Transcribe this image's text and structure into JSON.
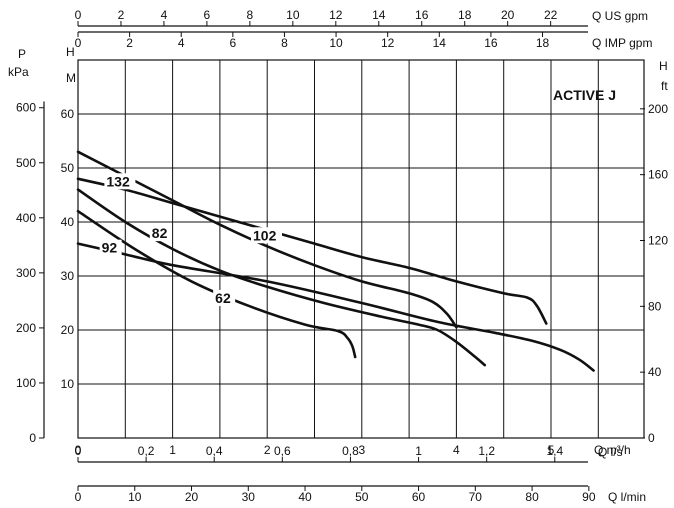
{
  "chart_data": {
    "type": "line",
    "title": "ACTIVE J",
    "x_main": {
      "label": "Q m³/h",
      "range": [
        0,
        5.3
      ],
      "ticks": [
        0,
        1,
        2,
        3,
        4,
        5
      ]
    },
    "y_left": {
      "label_top": "H",
      "label_unit": "M",
      "range": [
        0,
        60
      ],
      "ticks": [
        10,
        20,
        30,
        40,
        50,
        60
      ]
    },
    "y_pressure": {
      "label_top": "P",
      "label_unit": "kPa",
      "ticks": [
        0,
        100,
        200,
        300,
        400,
        500,
        600
      ]
    },
    "y_right": {
      "label_top": "H",
      "label_unit": "ft",
      "ticks": [
        0,
        40,
        80,
        120,
        160,
        200
      ]
    },
    "top_axes": [
      {
        "label": "Q US gpm",
        "ticks": [
          "0",
          "2",
          "4",
          "6",
          "8",
          "10",
          "12",
          "14",
          "16",
          "18",
          "20",
          "22"
        ]
      },
      {
        "label": "Q IMP gpm",
        "ticks": [
          "0",
          "2",
          "4",
          "6",
          "8",
          "10",
          "12",
          "14",
          "16",
          "18"
        ]
      }
    ],
    "bottom_axes": [
      {
        "label": "Q l/s",
        "ticks": [
          "0",
          "0,2",
          "0,4",
          "0,6",
          "0,8",
          "1",
          "1,2",
          "1,4"
        ]
      },
      {
        "label": "Q l/min",
        "ticks": [
          "0",
          "10",
          "20",
          "30",
          "40",
          "50",
          "60",
          "70",
          "80",
          "90"
        ]
      }
    ],
    "series": [
      {
        "name": "62",
        "points": [
          [
            0,
            42
          ],
          [
            0.6,
            35
          ],
          [
            1.2,
            29
          ],
          [
            1.8,
            24.5
          ],
          [
            2.4,
            21
          ],
          [
            2.75,
            19.8
          ],
          [
            2.85,
            18.5
          ],
          [
            2.9,
            17
          ],
          [
            2.93,
            15
          ]
        ]
      },
      {
        "name": "82",
        "points": [
          [
            0,
            46
          ],
          [
            0.5,
            40
          ],
          [
            1,
            35
          ],
          [
            1.5,
            31
          ],
          [
            2,
            28
          ],
          [
            2.6,
            25
          ],
          [
            3.2,
            22.5
          ],
          [
            3.6,
            21
          ],
          [
            3.8,
            20
          ],
          [
            4.0,
            17.8
          ],
          [
            4.2,
            15
          ],
          [
            4.3,
            13.5
          ]
        ]
      },
      {
        "name": "92",
        "points": [
          [
            0,
            36
          ],
          [
            0.5,
            34
          ],
          [
            1,
            32
          ],
          [
            2,
            29
          ],
          [
            3,
            25
          ],
          [
            3.8,
            21.5
          ],
          [
            4.4,
            19.5
          ],
          [
            4.8,
            18
          ],
          [
            5.1,
            16.3
          ],
          [
            5.3,
            14.5
          ],
          [
            5.45,
            12.5
          ]
        ]
      },
      {
        "name": "102",
        "points": [
          [
            0,
            53
          ],
          [
            0.5,
            48.5
          ],
          [
            1,
            44
          ],
          [
            1.5,
            39.5
          ],
          [
            2,
            35.5
          ],
          [
            2.5,
            32
          ],
          [
            3,
            29
          ],
          [
            3.5,
            26.8
          ],
          [
            3.75,
            25.2
          ],
          [
            3.9,
            23
          ],
          [
            4.0,
            20.5
          ]
        ]
      },
      {
        "name": "132",
        "points": [
          [
            0,
            48
          ],
          [
            0.5,
            46
          ],
          [
            1,
            43.5
          ],
          [
            1.5,
            41
          ],
          [
            2,
            38.5
          ],
          [
            2.5,
            36
          ],
          [
            3,
            33.5
          ],
          [
            3.5,
            31.5
          ],
          [
            4,
            29
          ],
          [
            4.5,
            26.8
          ],
          [
            4.75,
            26
          ],
          [
            4.85,
            24.5
          ],
          [
            4.95,
            21.2
          ]
        ]
      }
    ],
    "grid": "on",
    "legend": "inline labels on curves"
  }
}
